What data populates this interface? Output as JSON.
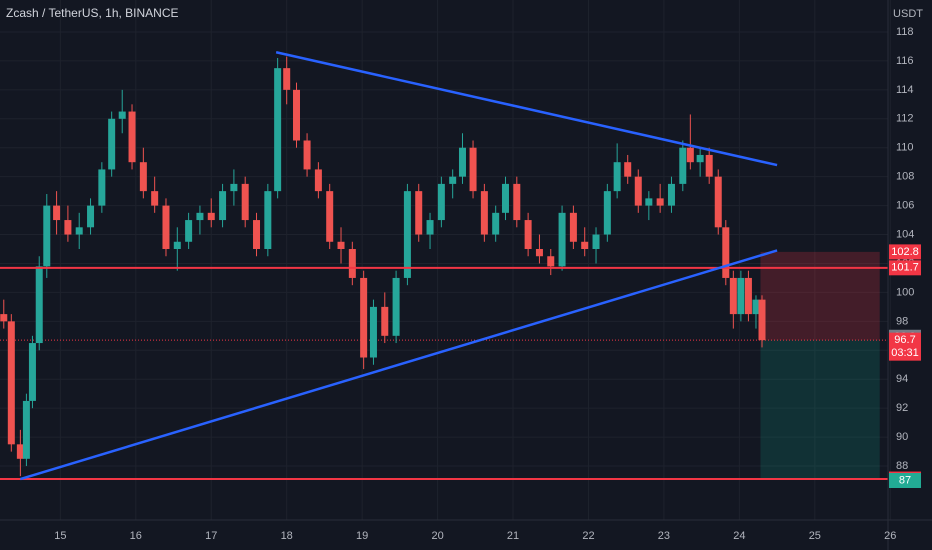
{
  "header": {
    "title": "Zcash / TetherUS, 1h, BINANCE",
    "currency": "USDT"
  },
  "chart_data": {
    "type": "candlestick",
    "x": [
      14.25,
      14.35,
      14.47,
      14.55,
      14.63,
      14.72,
      14.82,
      14.95,
      15.1,
      15.25,
      15.4,
      15.55,
      15.68,
      15.82,
      15.95,
      16.1,
      16.25,
      16.4,
      16.55,
      16.7,
      16.85,
      17.0,
      17.15,
      17.3,
      17.45,
      17.6,
      17.75,
      17.88,
      18.0,
      18.13,
      18.27,
      18.42,
      18.57,
      18.72,
      18.87,
      19.02,
      19.15,
      19.3,
      19.45,
      19.6,
      19.75,
      19.9,
      20.05,
      20.2,
      20.33,
      20.47,
      20.62,
      20.77,
      20.9,
      21.05,
      21.2,
      21.35,
      21.5,
      21.65,
      21.8,
      21.95,
      22.1,
      22.25,
      22.38,
      22.52,
      22.66,
      22.8,
      22.95,
      23.1,
      23.25,
      23.35,
      23.48,
      23.6,
      23.72,
      23.82,
      23.92,
      24.02,
      24.12,
      24.22,
      24.3
    ],
    "open": [
      98.5,
      98.0,
      89.5,
      88.5,
      92.5,
      96.5,
      101.8,
      106.0,
      105.0,
      104.0,
      104.5,
      106.0,
      108.5,
      112.0,
      112.5,
      109.0,
      107.0,
      106.0,
      103.0,
      103.5,
      105.0,
      105.5,
      105.0,
      107.0,
      107.5,
      105.0,
      103.0,
      107.0,
      115.5,
      114.0,
      110.5,
      108.5,
      107.0,
      103.5,
      103.0,
      101.0,
      95.5,
      99.0,
      97.0,
      101.0,
      107.0,
      104.0,
      105.0,
      107.5,
      108.0,
      110.0,
      107.0,
      104.0,
      105.5,
      107.5,
      105.0,
      103.0,
      102.5,
      101.8,
      105.5,
      103.5,
      103.0,
      104.0,
      107.0,
      109.0,
      108.0,
      106.0,
      106.5,
      106.0,
      107.5,
      110.0,
      109.0,
      109.5,
      108.0,
      104.5,
      101.0,
      98.5,
      101.0,
      98.5,
      99.5
    ],
    "high": [
      99.5,
      98.5,
      90.5,
      93.0,
      97.0,
      102.5,
      106.8,
      107.0,
      106.0,
      105.5,
      106.5,
      109.0,
      112.5,
      114.0,
      113.0,
      110.0,
      108.0,
      106.5,
      104.5,
      105.5,
      106.0,
      106.5,
      107.5,
      108.5,
      108.0,
      105.5,
      107.5,
      116.2,
      116.3,
      114.5,
      111.0,
      109.0,
      107.5,
      104.5,
      103.5,
      101.5,
      99.5,
      100.0,
      101.5,
      107.5,
      107.5,
      105.5,
      108.0,
      108.5,
      111.0,
      110.5,
      107.5,
      106.0,
      108.0,
      108.0,
      105.5,
      104.0,
      103.0,
      106.0,
      106.0,
      104.5,
      104.5,
      107.5,
      110.3,
      109.5,
      108.5,
      107.0,
      107.5,
      108.0,
      110.5,
      112.3,
      110.0,
      110.0,
      108.5,
      105.0,
      101.5,
      101.5,
      101.5,
      99.8,
      99.8
    ],
    "low": [
      97.5,
      89.0,
      87.3,
      88.0,
      92.0,
      96.0,
      101.0,
      104.0,
      103.5,
      103.0,
      104.0,
      105.5,
      108.0,
      111.0,
      108.5,
      106.5,
      105.5,
      102.5,
      101.5,
      103.0,
      104.0,
      104.5,
      104.5,
      106.0,
      104.5,
      102.5,
      102.5,
      106.5,
      113.0,
      110.0,
      108.0,
      106.5,
      103.0,
      102.0,
      100.5,
      94.7,
      95.0,
      96.5,
      96.5,
      100.5,
      103.5,
      103.0,
      104.5,
      106.5,
      107.5,
      106.5,
      103.5,
      103.5,
      105.0,
      104.5,
      102.5,
      102.0,
      101.2,
      101.5,
      103.0,
      102.5,
      102.0,
      103.5,
      106.5,
      107.5,
      105.5,
      105.0,
      105.5,
      105.5,
      107.0,
      108.5,
      108.0,
      107.5,
      104.0,
      100.5,
      97.5,
      98.0,
      98.0,
      97.5,
      96.2
    ],
    "close": [
      98.0,
      89.5,
      88.5,
      92.5,
      96.5,
      101.8,
      106.0,
      105.0,
      104.0,
      104.5,
      106.0,
      108.5,
      112.0,
      112.5,
      109.0,
      107.0,
      106.0,
      103.0,
      103.5,
      105.0,
      105.5,
      105.0,
      107.0,
      107.5,
      105.0,
      103.0,
      107.0,
      115.5,
      114.0,
      110.5,
      108.5,
      107.0,
      103.5,
      103.0,
      101.0,
      95.5,
      99.0,
      97.0,
      101.0,
      107.0,
      104.0,
      105.0,
      107.5,
      108.0,
      110.0,
      107.0,
      104.0,
      105.5,
      107.5,
      105.0,
      103.0,
      102.5,
      101.8,
      105.5,
      103.5,
      103.0,
      104.0,
      107.0,
      109.0,
      108.0,
      106.0,
      106.5,
      106.0,
      107.5,
      110.0,
      109.0,
      109.5,
      108.0,
      104.5,
      101.0,
      98.5,
      101.0,
      98.5,
      99.5,
      96.7
    ],
    "up_color": "#26a69a",
    "down_color": "#ef5350",
    "xlim": [
      14.2,
      25.97
    ],
    "ylim": [
      84.27,
      120.21
    ],
    "xticks": [
      15,
      16,
      17,
      18,
      19,
      20,
      21,
      22,
      23,
      24,
      25,
      26
    ],
    "yticks": [
      88.0,
      90.0,
      92.0,
      94.0,
      96.0,
      98.0,
      100.0,
      102.0,
      104.0,
      106.0,
      108.0,
      110.0,
      112.0,
      114.0,
      116.0,
      118.0
    ],
    "grid": true,
    "levels": [
      {
        "value": 101.7,
        "color": "#f23645"
      },
      {
        "value": 87.1,
        "color": "#f23645"
      }
    ],
    "trendlines": [
      {
        "x": [
          17.86,
          24.5
        ],
        "y": [
          116.6,
          108.8
        ],
        "color": "#2962ff"
      },
      {
        "x": [
          14.47,
          24.5
        ],
        "y": [
          87.1,
          102.9
        ],
        "color": "#2962ff"
      }
    ],
    "position": {
      "x": [
        24.28,
        25.86
      ],
      "stop": 102.8,
      "entry": 96.7,
      "target": 87.1
    },
    "price_labels": [
      {
        "value": 102.8,
        "color": "#f23645"
      },
      {
        "value": 101.7,
        "color": "#f23645"
      },
      {
        "value": 96.9,
        "color": "#787b86"
      },
      {
        "value": 96.7,
        "color": "#f23645",
        "countdown": "03:31"
      },
      {
        "value": 87.1,
        "color": "#f23645"
      },
      {
        "value": 87.0,
        "color": "#22ab94"
      }
    ]
  }
}
